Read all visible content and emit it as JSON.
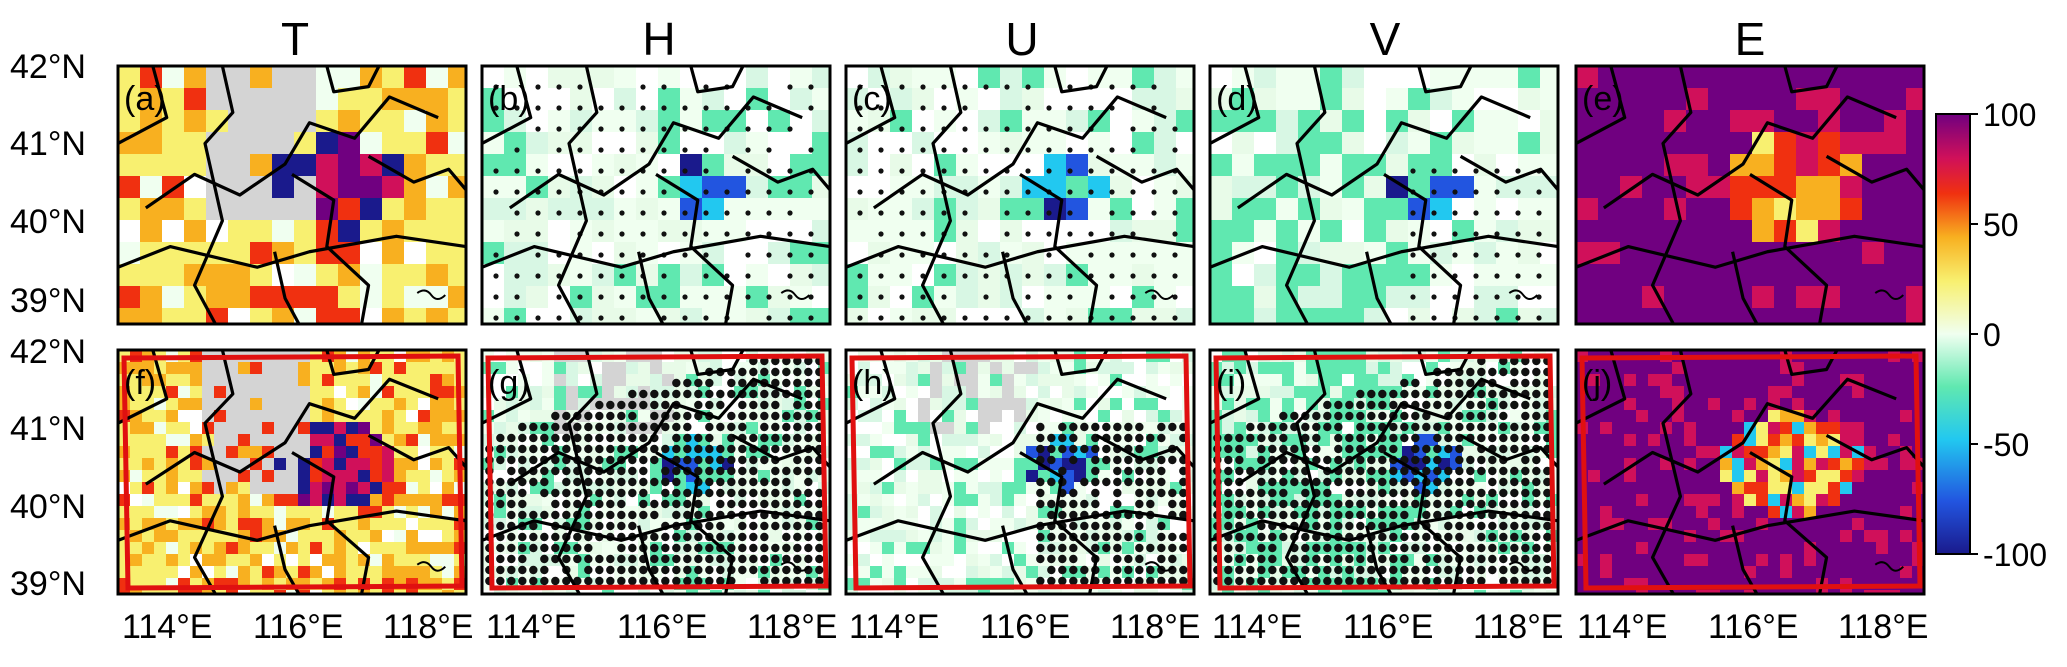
{
  "columns": [
    "T",
    "H",
    "U",
    "V",
    "E"
  ],
  "panel_labels": [
    [
      "(a)",
      "(b)",
      "(c)",
      "(d)",
      "(e)"
    ],
    [
      "(f)",
      "(g)",
      "(h)",
      "(i)",
      "(j)"
    ]
  ],
  "y_ticks": [
    "42°N",
    "41°N",
    "40°N",
    "39°N"
  ],
  "x_ticks": [
    "114°E",
    "116°E",
    "118°E"
  ],
  "colorbar": {
    "ticks": [
      "100",
      "50",
      "0",
      "-50",
      "-100"
    ],
    "range": [
      -100,
      100
    ],
    "colors": [
      "#1a1a8c",
      "#2255e0",
      "#22c8f0",
      "#60e8b0",
      "#f0fff0",
      "#f8f070",
      "#f8b020",
      "#f03010",
      "#d0105a",
      "#700080"
    ]
  },
  "masked_color": "#d4d4d4",
  "outline_color": "#e01010"
}
